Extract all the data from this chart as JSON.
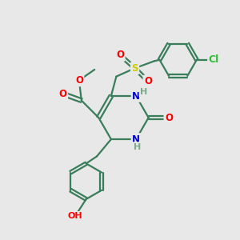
{
  "bg_color": "#e8e8e8",
  "bond_color": "#3a7d5a",
  "bond_width": 1.6,
  "atom_colors": {
    "O": "#ff0000",
    "N": "#0000cd",
    "S": "#cccc00",
    "Cl": "#33bb33",
    "C": "#3a7d5a",
    "H": "#7aaa88"
  },
  "font_size": 8.5
}
